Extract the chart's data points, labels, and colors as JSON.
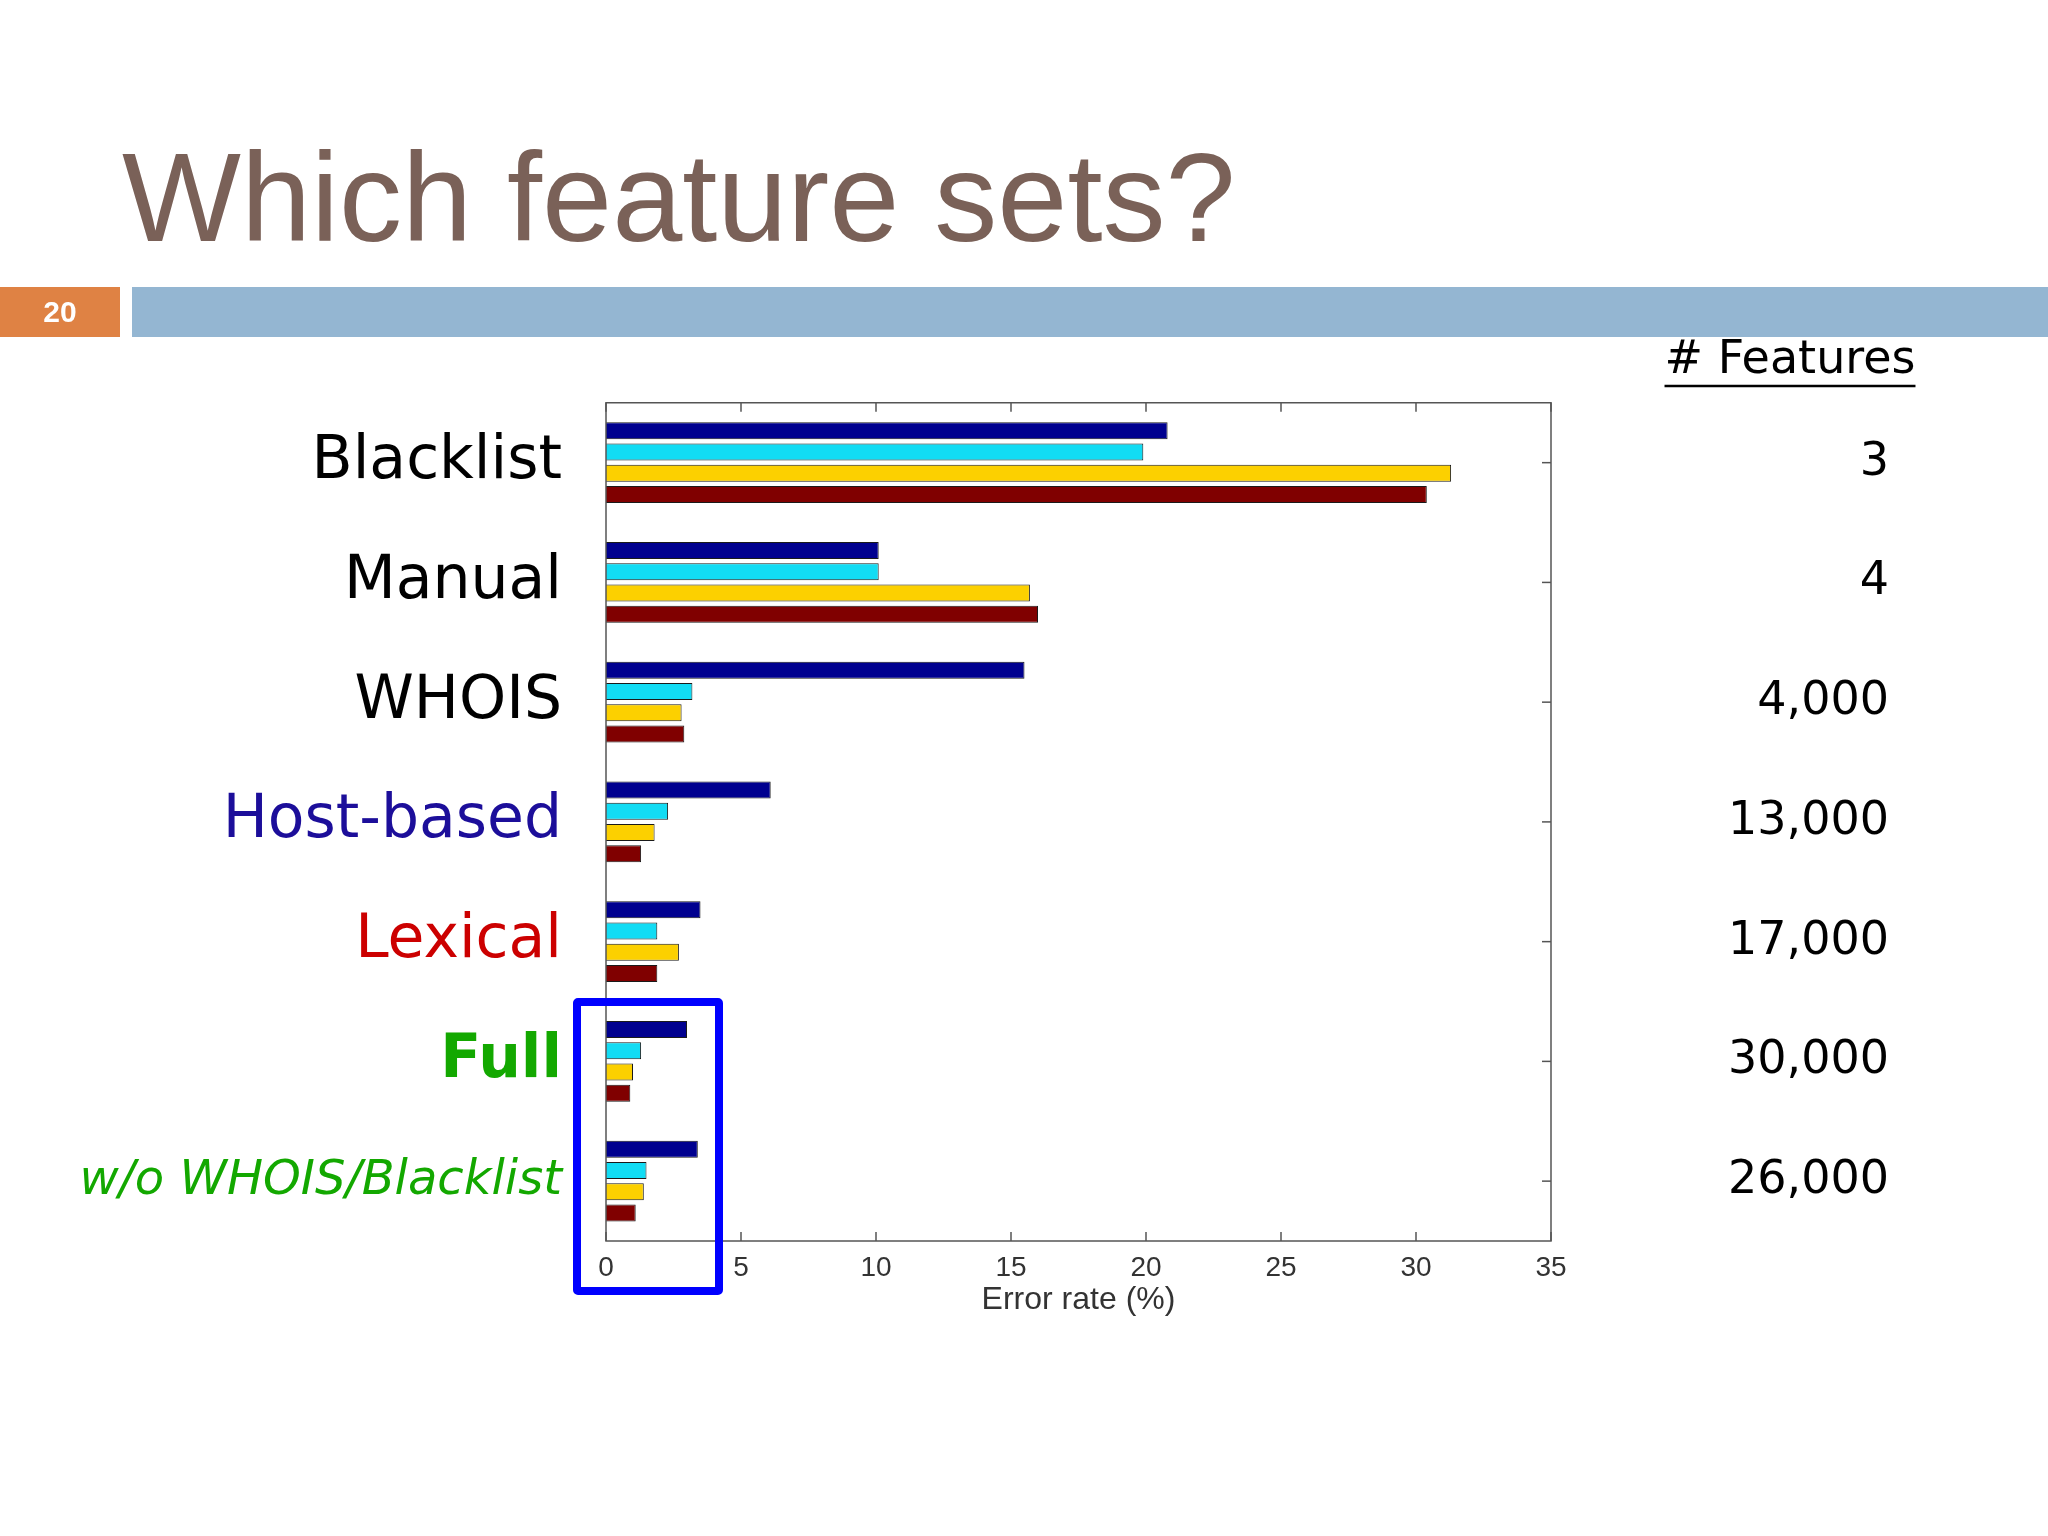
{
  "chart_data": {
    "type": "bar",
    "orientation": "horizontal",
    "title": "Which feature sets?",
    "xlabel": "Error rate (%)",
    "categories": [
      "Blacklist",
      "Manual",
      "WHOIS",
      "Host-based",
      "Lexical",
      "Full",
      "w/o WHOIS/Blacklist"
    ],
    "series": [
      {
        "color": "#00008f",
        "values": [
          20.8,
          10.1,
          15.5,
          6.1,
          3.5,
          3.0,
          3.4
        ]
      },
      {
        "color": "#12dcf4",
        "values": [
          19.9,
          10.1,
          3.2,
          2.3,
          1.9,
          1.3,
          1.5
        ]
      },
      {
        "color": "#fcd000",
        "values": [
          31.3,
          15.7,
          2.8,
          1.8,
          2.7,
          1.0,
          1.4
        ]
      },
      {
        "color": "#800000",
        "values": [
          30.4,
          16.0,
          2.9,
          1.3,
          1.9,
          0.9,
          1.1
        ]
      }
    ],
    "xlim": [
      0,
      35
    ],
    "xticks": [
      0,
      5,
      10,
      15,
      20,
      25,
      30,
      35
    ],
    "annotations": [
      "20",
      "# Features",
      "3",
      "4",
      "4,000",
      "13,000",
      "17,000",
      "30,000",
      "26,000"
    ]
  }
}
